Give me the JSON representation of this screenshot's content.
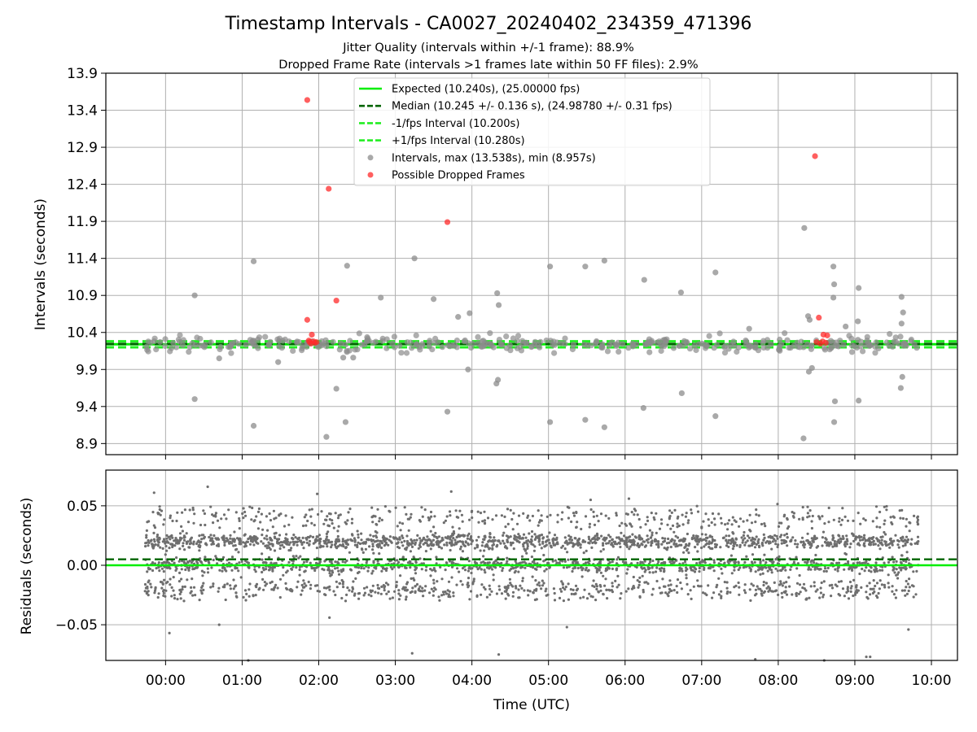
{
  "figure": {
    "title": "Timestamp Intervals - CA0027_20240402_234359_471396",
    "subtitle_1": "Jitter Quality (intervals within +/-1 frame): 88.9%",
    "subtitle_2": "Dropped Frame Rate (intervals >1 frames late within 50 FF files): 2.9%"
  },
  "chart_data": [
    {
      "type": "scatter",
      "panel": "top",
      "ylabel": "Intervals (seconds)",
      "ylim": [
        8.75,
        13.9
      ],
      "yticks": [
        8.9,
        9.4,
        9.9,
        10.4,
        10.9,
        11.4,
        11.9,
        12.4,
        12.9,
        13.4,
        13.9
      ],
      "xlim": [
        -0.78,
        10.34
      ],
      "grid": true,
      "legend_position": "top-center",
      "lines": [
        {
          "name": "Expected (10.240s), (25.00000 fps)",
          "y": 10.24,
          "color": "#00ee00",
          "style": "solid"
        },
        {
          "name": "Median (10.245 +/- 0.136 s), (24.98780 +/- 0.31 fps)",
          "y": 10.245,
          "color": "#006400",
          "style": "dashed"
        },
        {
          "name": "-1/fps Interval (10.200s)",
          "y": 10.2,
          "color": "#22ee22",
          "style": "dashed"
        },
        {
          "name": "+1/fps Interval (10.280s)",
          "y": 10.28,
          "color": "#22ee22",
          "style": "dashed"
        }
      ],
      "series": [
        {
          "name": "Intervals, max (13.538s), min (8.957s)",
          "color": "#8c8c8c",
          "x": [
            0.38,
            1.15,
            0.38,
            1.15,
            2.1,
            2.37,
            2.23,
            2.35,
            2.81,
            3.25,
            3.5,
            3.68,
            3.82,
            3.97,
            4.33,
            4.35,
            4.32,
            4.34,
            5.02,
            5.02,
            5.48,
            5.48,
            5.73,
            5.73,
            6.25,
            6.24,
            6.73,
            6.74,
            7.18,
            7.18,
            8.34,
            8.33,
            8.39,
            8.41,
            8.4,
            8.44,
            8.72,
            8.73,
            8.72,
            8.74,
            8.73,
            9.05,
            9.04,
            9.05,
            9.04,
            9.61,
            9.63,
            9.6,
            9.62,
            9.61,
            8.88,
            2.32,
            2.45,
            1.47,
            0.7,
            7.62,
            3.95
          ],
          "y": [
            10.9,
            11.36,
            9.5,
            9.14,
            8.99,
            11.3,
            9.64,
            9.19,
            10.87,
            11.4,
            10.85,
            9.33,
            10.61,
            10.66,
            10.93,
            10.77,
            9.71,
            9.76,
            9.19,
            11.29,
            9.22,
            11.29,
            9.12,
            11.37,
            11.11,
            9.38,
            10.94,
            9.58,
            11.21,
            9.27,
            11.81,
            8.97,
            10.62,
            10.57,
            9.87,
            9.92,
            11.29,
            11.05,
            10.87,
            9.47,
            9.19,
            11.0,
            10.55,
            9.48,
            10.3,
            10.88,
            10.67,
            9.65,
            9.8,
            10.52,
            10.48,
            10.06,
            10.06,
            10.0,
            10.05,
            10.45,
            9.9
          ]
        },
        {
          "name": "Possible Dropped Frames",
          "color": "#ff2a2a",
          "x": [
            1.85,
            2.13,
            3.68,
            8.48,
            1.85,
            2.23,
            8.53
          ],
          "y": [
            13.538,
            12.34,
            11.89,
            12.78,
            10.57,
            10.83,
            10.6
          ]
        }
      ],
      "bands": [
        {
          "note": "dense interval scatter",
          "y_center": 10.24,
          "y_spread": 0.09,
          "count": 320
        }
      ]
    },
    {
      "type": "scatter",
      "panel": "bottom",
      "xlabel": "Time (UTC)",
      "ylabel": "Residuals (seconds)",
      "ylim": [
        -0.08,
        0.08
      ],
      "yticks": [
        -0.05,
        0.0,
        0.05
      ],
      "ytick_labels": [
        "−0.05",
        "0.00",
        "0.05"
      ],
      "xlim": [
        -0.78,
        10.34
      ],
      "xticks": [
        0,
        1,
        2,
        3,
        4,
        5,
        6,
        7,
        8,
        9,
        10
      ],
      "xtick_labels": [
        "00:00",
        "01:00",
        "02:00",
        "03:00",
        "04:00",
        "05:00",
        "06:00",
        "07:00",
        "08:00",
        "09:00",
        "10:00"
      ],
      "grid": true,
      "lines": [
        {
          "y": 0.0,
          "color": "#00ee00",
          "style": "solid"
        },
        {
          "y": 0.005,
          "color": "#006400",
          "style": "dashed"
        }
      ],
      "series": [
        {
          "color": "#6e6e6e",
          "x_range": [
            -0.27,
            9.83
          ],
          "count": 3400,
          "y_levels": [
            0.02,
            0.0,
            -0.02,
            0.04
          ],
          "outliers_x": [
            0.05,
            -0.15,
            0.7,
            1.08,
            2.14,
            3.22,
            4.35,
            5.24,
            7.7,
            8.6,
            9.15,
            9.2,
            9.7,
            -0.1,
            0.55,
            1.98,
            3.73,
            5.55,
            6.05
          ],
          "outliers_y": [
            -0.057,
            0.061,
            -0.05,
            -0.08,
            -0.044,
            -0.074,
            -0.075,
            -0.052,
            -0.079,
            -0.08,
            -0.077,
            -0.077,
            -0.054,
            0.044,
            0.066,
            0.06,
            0.062,
            0.055,
            0.056
          ]
        }
      ]
    }
  ]
}
